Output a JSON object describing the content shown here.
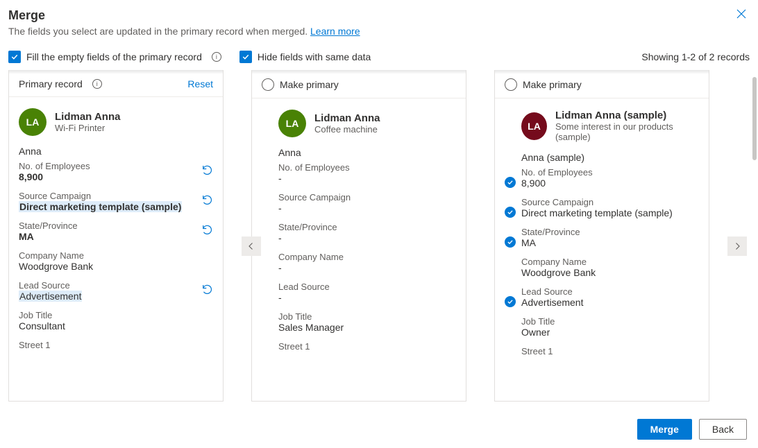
{
  "colors": {
    "accent": "#0078d4",
    "avatar_green": "#498205",
    "avatar_maroon": "#750b1c",
    "text": "#323130",
    "text_secondary": "#605e5c",
    "border": "#e1dfdd",
    "nav_bg": "#edebe9",
    "highlight": "#deecf9",
    "close": "#0078d4",
    "scroll": "#c8c6c4"
  },
  "header": {
    "title": "Merge",
    "subtitle_prefix": "The fields you select are updated in the primary record when merged. ",
    "learn_more": "Learn more"
  },
  "options": {
    "fill_empty_label": "Fill the empty fields of the primary record",
    "fill_empty_checked": true,
    "hide_same_label": "Hide fields with same data",
    "hide_same_checked": true,
    "records_text": "Showing 1-2 of 2 records"
  },
  "primary": {
    "section_label": "Primary record",
    "reset_label": "Reset",
    "avatar_initials": "LA",
    "name": "Lidman Anna",
    "sub": "Wi-Fi Printer",
    "short_name": "Anna",
    "fields": [
      {
        "label": "No. of Employees",
        "value": "8,900",
        "bold": true,
        "undo": true
      },
      {
        "label": "Source Campaign",
        "value": "Direct marketing template (sample)",
        "bold": true,
        "highlighted": true,
        "undo": true
      },
      {
        "label": "State/Province",
        "value": "MA",
        "bold": true,
        "undo": true
      },
      {
        "label": "Company Name",
        "value": "Woodgrove Bank",
        "bold": false,
        "undo": false
      },
      {
        "label": "Lead Source",
        "value": "Advertisement",
        "bold": false,
        "highlighted": true,
        "undo": true
      },
      {
        "label": "Job Title",
        "value": "Consultant",
        "bold": false,
        "undo": false
      },
      {
        "label": "Street 1",
        "value": "",
        "bold": false,
        "undo": false
      }
    ]
  },
  "secondary": [
    {
      "make_primary_label": "Make primary",
      "avatar_initials": "LA",
      "avatar_color": "green",
      "name": "Lidman Anna",
      "sub": "Coffee machine",
      "short_name": "Anna",
      "fields": [
        {
          "label": "No. of Employees",
          "value": "-",
          "selected": false
        },
        {
          "label": "Source Campaign",
          "value": "-",
          "selected": false
        },
        {
          "label": "State/Province",
          "value": "-",
          "selected": false
        },
        {
          "label": "Company Name",
          "value": "-",
          "selected": false
        },
        {
          "label": "Lead Source",
          "value": "-",
          "selected": false
        },
        {
          "label": "Job Title",
          "value": "Sales Manager",
          "selected": false
        },
        {
          "label": "Street 1",
          "value": "",
          "selected": false
        }
      ]
    },
    {
      "make_primary_label": "Make primary",
      "avatar_initials": "LA",
      "avatar_color": "maroon",
      "name": "Lidman Anna (sample)",
      "sub": "Some interest in our products (sample)",
      "short_name": "Anna (sample)",
      "fields": [
        {
          "label": "No. of Employees",
          "value": "8,900",
          "selected": true
        },
        {
          "label": "Source Campaign",
          "value": "Direct marketing template (sample)",
          "selected": true
        },
        {
          "label": "State/Province",
          "value": "MA",
          "selected": true
        },
        {
          "label": "Company Name",
          "value": "Woodgrove Bank",
          "selected": false
        },
        {
          "label": "Lead Source",
          "value": "Advertisement",
          "selected": true
        },
        {
          "label": "Job Title",
          "value": "Owner",
          "selected": false
        },
        {
          "label": "Street 1",
          "value": "",
          "selected": false
        }
      ]
    }
  ],
  "footer": {
    "merge_label": "Merge",
    "back_label": "Back"
  }
}
